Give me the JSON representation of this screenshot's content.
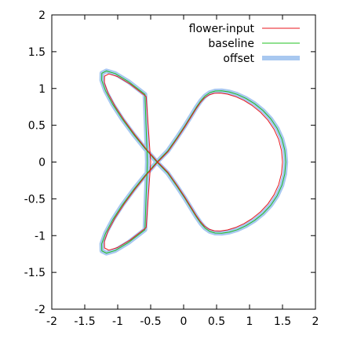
{
  "chart_data": {
    "type": "line",
    "title": "",
    "xlabel": "",
    "ylabel": "",
    "xlim": [
      -2,
      2
    ],
    "ylim": [
      -2,
      2
    ],
    "xticks": [
      -2,
      -1.5,
      -1,
      -0.5,
      0,
      0.5,
      1,
      1.5,
      2
    ],
    "yticks": [
      -2,
      -1.5,
      -1,
      -0.5,
      0,
      0.5,
      1,
      1.5,
      2
    ],
    "x_tick_labels": [
      "-2",
      "-1.5",
      "-1",
      "-0.5",
      "0",
      "0.5",
      "1",
      "1.5",
      "2"
    ],
    "y_tick_labels": [
      "-2",
      "-1.5",
      "-1",
      "-0.5",
      "0",
      "0.5",
      "1",
      "1.5",
      "2"
    ],
    "grid": false,
    "legend_position": "top-right",
    "series": [
      {
        "name": "flower-input",
        "color": "#e8161c",
        "x": [
          1.5,
          1.485,
          1.442,
          1.372,
          1.278,
          1.166,
          1.042,
          0.914,
          0.787,
          0.667,
          0.558,
          0.463,
          0.383,
          0.314,
          0.252,
          0.187,
          0.111,
          0.018,
          -0.097,
          -0.235,
          -0.393,
          -0.564,
          -0.737,
          -0.901,
          -1.042,
          -1.146,
          -1.202,
          -1.2,
          -1.134,
          -1.003,
          -0.811,
          -0.568,
          -0.5,
          -0.568,
          -0.811,
          -1.003,
          -1.134,
          -1.2,
          -1.202,
          -1.146,
          -1.042,
          -0.901,
          -0.737,
          -0.564,
          -0.393,
          -0.235,
          -0.097,
          0.018,
          0.111,
          0.187,
          0.252,
          0.314,
          0.383,
          0.463,
          0.558,
          0.667,
          0.787,
          0.914,
          1.042,
          1.166,
          1.278,
          1.372,
          1.442,
          1.485,
          1.5
        ],
        "y": [
          0.0,
          0.158,
          0.307,
          0.445,
          0.569,
          0.677,
          0.767,
          0.838,
          0.89,
          0.923,
          0.938,
          0.934,
          0.912,
          0.869,
          0.806,
          0.721,
          0.611,
          0.477,
          0.321,
          0.144,
          -0.0,
          0.174,
          0.367,
          0.567,
          0.762,
          0.937,
          1.077,
          1.168,
          1.198,
          1.163,
          1.059,
          0.891,
          0.0,
          -0.891,
          -1.059,
          -1.163,
          -1.198,
          -1.168,
          -1.077,
          -0.937,
          -0.762,
          -0.567,
          -0.367,
          -0.174,
          0.0,
          -0.144,
          -0.321,
          -0.477,
          -0.611,
          -0.721,
          -0.806,
          -0.869,
          -0.912,
          -0.934,
          -0.938,
          -0.923,
          -0.89,
          -0.838,
          -0.767,
          -0.677,
          -0.569,
          -0.445,
          -0.307,
          -0.158,
          0.0
        ]
      },
      {
        "name": "baseline",
        "color": "#22c022",
        "x": [
          1.55,
          1.535,
          1.49,
          1.418,
          1.321,
          1.205,
          1.077,
          0.944,
          0.813,
          0.689,
          0.577,
          0.479,
          0.396,
          0.325,
          0.261,
          0.193,
          0.115,
          0.019,
          -0.1,
          -0.243,
          -0.406,
          -0.583,
          -0.762,
          -0.932,
          -1.077,
          -1.185,
          -1.243,
          -1.241,
          -1.173,
          -1.037,
          -0.838,
          -0.587,
          -0.55,
          -0.587,
          -0.838,
          -1.037,
          -1.173,
          -1.241,
          -1.243,
          -1.185,
          -1.077,
          -0.932,
          -0.762,
          -0.583,
          -0.406,
          -0.243,
          -0.1,
          0.019,
          0.115,
          0.193,
          0.261,
          0.325,
          0.396,
          0.479,
          0.577,
          0.689,
          0.813,
          0.944,
          1.077,
          1.205,
          1.321,
          1.418,
          1.49,
          1.535,
          1.55
        ],
        "y": [
          0.0,
          0.163,
          0.317,
          0.46,
          0.588,
          0.7,
          0.793,
          0.866,
          0.92,
          0.954,
          0.969,
          0.965,
          0.943,
          0.898,
          0.833,
          0.745,
          0.632,
          0.493,
          0.332,
          0.149,
          -0.0,
          0.18,
          0.379,
          0.586,
          0.787,
          0.968,
          1.113,
          1.207,
          1.238,
          1.202,
          1.094,
          0.921,
          0.0,
          -0.921,
          -1.094,
          -1.202,
          -1.238,
          -1.207,
          -1.113,
          -0.968,
          -0.787,
          -0.586,
          -0.379,
          -0.18,
          0.0,
          -0.149,
          -0.332,
          -0.493,
          -0.632,
          -0.745,
          -0.833,
          -0.898,
          -0.943,
          -0.965,
          -0.969,
          -0.954,
          -0.92,
          -0.866,
          -0.793,
          -0.7,
          -0.588,
          -0.46,
          -0.317,
          -0.163,
          0.0
        ]
      },
      {
        "name": "offset",
        "color": "#a8c8f0",
        "x": [
          1.55,
          1.535,
          1.49,
          1.418,
          1.321,
          1.205,
          1.077,
          0.944,
          0.813,
          0.689,
          0.577,
          0.479,
          0.396,
          0.325,
          0.261,
          0.193,
          0.115,
          0.019,
          -0.1,
          -0.243,
          -0.406,
          -0.583,
          -0.762,
          -0.932,
          -1.077,
          -1.185,
          -1.243,
          -1.241,
          -1.173,
          -1.037,
          -0.838,
          -0.587,
          -0.55,
          -0.587,
          -0.838,
          -1.037,
          -1.173,
          -1.241,
          -1.243,
          -1.185,
          -1.077,
          -0.932,
          -0.762,
          -0.583,
          -0.406,
          -0.243,
          -0.1,
          0.019,
          0.115,
          0.193,
          0.261,
          0.325,
          0.396,
          0.479,
          0.577,
          0.689,
          0.813,
          0.944,
          1.077,
          1.205,
          1.321,
          1.418,
          1.49,
          1.535,
          1.55
        ],
        "y": [
          0.0,
          0.163,
          0.317,
          0.46,
          0.588,
          0.7,
          0.793,
          0.866,
          0.92,
          0.954,
          0.969,
          0.965,
          0.943,
          0.898,
          0.833,
          0.745,
          0.632,
          0.493,
          0.332,
          0.149,
          -0.0,
          0.18,
          0.379,
          0.586,
          0.787,
          0.968,
          1.113,
          1.207,
          1.238,
          1.202,
          1.094,
          0.921,
          0.0,
          -0.921,
          -1.094,
          -1.202,
          -1.238,
          -1.207,
          -1.113,
          -0.968,
          -0.787,
          -0.586,
          -0.379,
          -0.18,
          0.0,
          -0.149,
          -0.332,
          -0.493,
          -0.632,
          -0.745,
          -0.833,
          -0.898,
          -0.943,
          -0.965,
          -0.969,
          -0.954,
          -0.92,
          -0.866,
          -0.793,
          -0.7,
          -0.588,
          -0.46,
          -0.317,
          -0.163,
          0.0
        ]
      }
    ]
  }
}
